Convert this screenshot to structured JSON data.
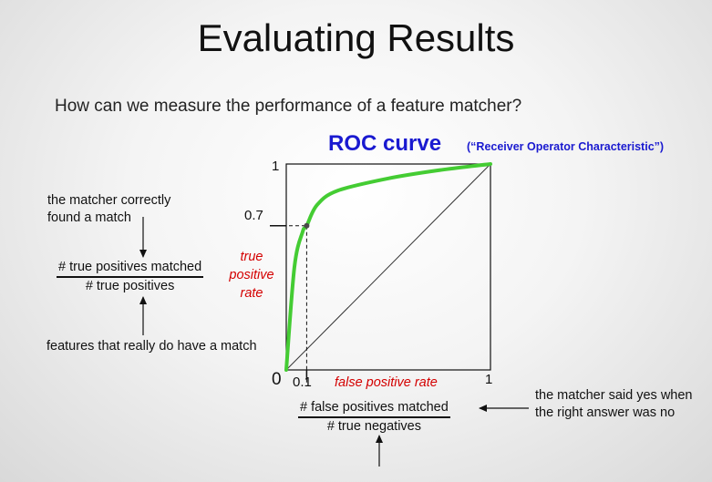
{
  "slide": {
    "title": "Evaluating Results",
    "question": "How can we measure the performance of a feature matcher?"
  },
  "roc": {
    "title": "ROC curve",
    "subtitle": "(“Receiver Operator Characteristic”)",
    "ylabel": [
      "true",
      "positive",
      "rate"
    ],
    "xlabel": "false positive rate",
    "y_ticks": {
      "top": "1",
      "mid": "0.7"
    },
    "x_ticks": {
      "origin": "0",
      "mid": "0.1",
      "right": "1"
    }
  },
  "left_notes": {
    "top": [
      "the matcher correctly",
      "found a match"
    ],
    "bottom": "features that really do have a match",
    "fraction": {
      "numerator": "# true positives matched",
      "denominator": "# true positives"
    }
  },
  "bottom_notes": {
    "fraction": {
      "numerator": "# false positives matched",
      "denominator": "# true negatives"
    },
    "right": [
      "the matcher said yes when",
      "the right answer was no"
    ]
  },
  "chart_data": {
    "type": "line",
    "title": "ROC curve",
    "subtitle": "(“Receiver Operator Characteristic”)",
    "xlabel": "false positive rate",
    "ylabel": "true positive rate",
    "xlim": [
      0,
      1
    ],
    "ylim": [
      0,
      1
    ],
    "grid": false,
    "series": [
      {
        "values": [
          [
            0,
            0
          ],
          [
            0.04,
            0.5
          ],
          [
            0.08,
            0.67
          ],
          [
            0.1,
            0.7
          ],
          [
            0.15,
            0.8
          ],
          [
            0.25,
            0.87
          ],
          [
            0.5,
            0.93
          ],
          [
            0.75,
            0.97
          ],
          [
            1,
            1
          ]
        ]
      },
      {
        "values": [
          [
            0,
            0
          ],
          [
            1,
            1
          ]
        ]
      }
    ],
    "highlight_point": {
      "x": 0.1,
      "y": 0.7
    },
    "colors": {
      "roc": "#44cc33",
      "diagonal": "#333333",
      "axes": "#111111"
    }
  }
}
